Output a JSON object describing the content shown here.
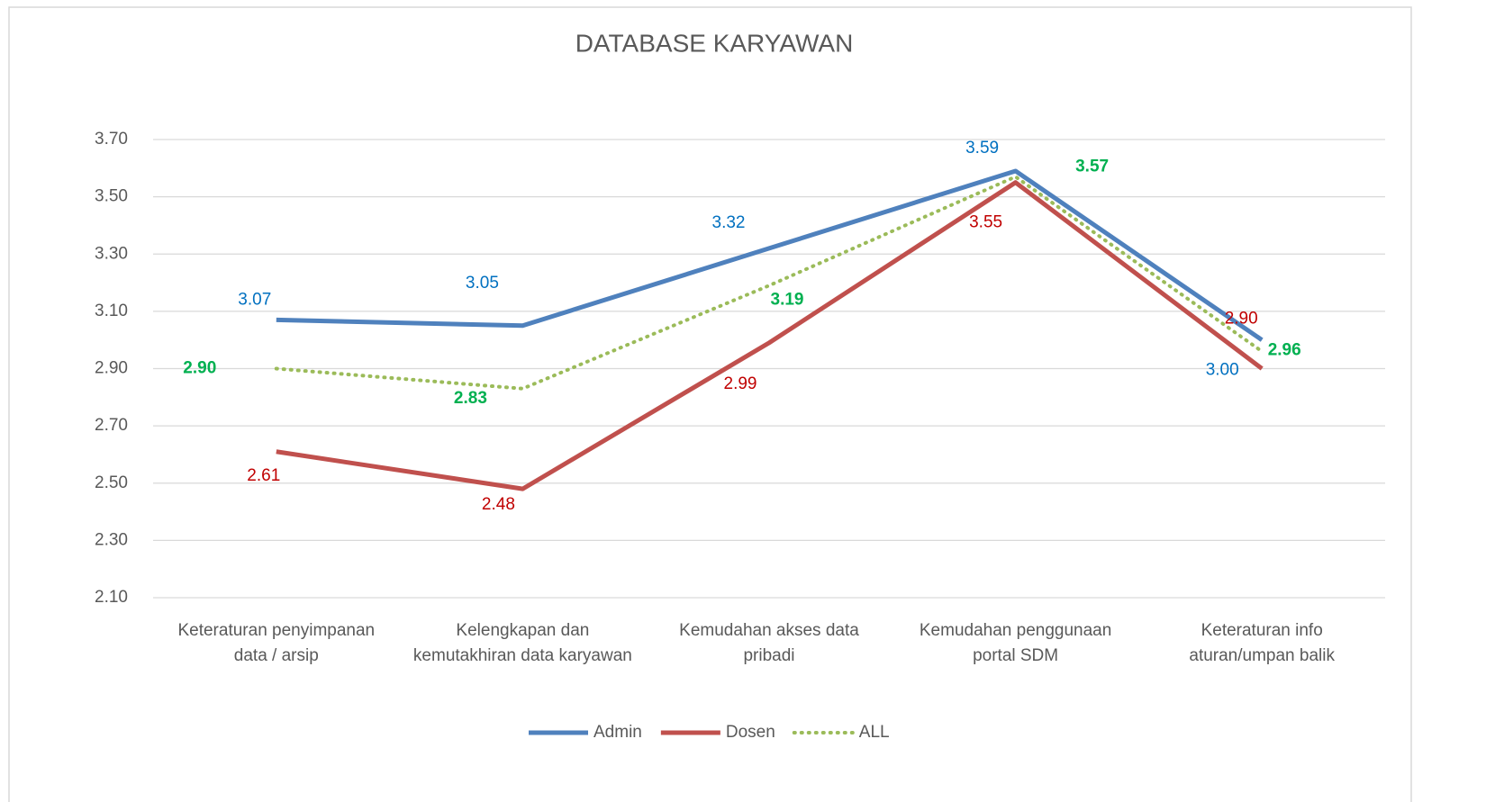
{
  "chart_data": {
    "type": "line",
    "title": "DATABASE KARYAWAN",
    "categories": [
      "Keteraturan penyimpanan\ndata / arsip",
      "Kelengkapan dan\nkemutakhiran data karyawan",
      "Kemudahan akses data\npribadi",
      "Kemudahan penggunaan\nportal SDM",
      "Keteraturan info\naturan/umpan balik"
    ],
    "series": [
      {
        "name": "Admin",
        "color": "#4f81bd",
        "label_color": "#0070c0",
        "values": [
          3.07,
          3.05,
          3.32,
          3.59,
          3.0
        ],
        "value_labels": [
          "3.07",
          "3.05",
          "3.32",
          "3.59",
          "3.00"
        ]
      },
      {
        "name": "Dosen",
        "color": "#c0504d",
        "label_color": "#c00000",
        "values": [
          2.61,
          2.48,
          2.99,
          3.55,
          2.9
        ],
        "value_labels": [
          "2.61",
          "2.48",
          "2.99",
          "3.55",
          "2.90"
        ]
      },
      {
        "name": "ALL",
        "color": "#9bbb59",
        "label_color": "#00b050",
        "dotted": true,
        "values": [
          2.9,
          2.83,
          3.19,
          3.57,
          2.96
        ],
        "value_labels": [
          "2.90",
          "2.83",
          "3.19",
          "3.57",
          "2.96"
        ]
      }
    ],
    "ylim": [
      2.1,
      3.7
    ],
    "yticks": [
      {
        "value": 2.1,
        "label": "2.10"
      },
      {
        "value": 2.3,
        "label": "2.30"
      },
      {
        "value": 2.5,
        "label": "2.50"
      },
      {
        "value": 2.7,
        "label": "2.70"
      },
      {
        "value": 2.9,
        "label": "2.90"
      },
      {
        "value": 3.1,
        "label": "3.10"
      },
      {
        "value": 3.3,
        "label": "3.30"
      },
      {
        "value": 3.5,
        "label": "3.50"
      },
      {
        "value": 3.7,
        "label": "3.70"
      }
    ],
    "grid": true,
    "legend": "bottom"
  }
}
